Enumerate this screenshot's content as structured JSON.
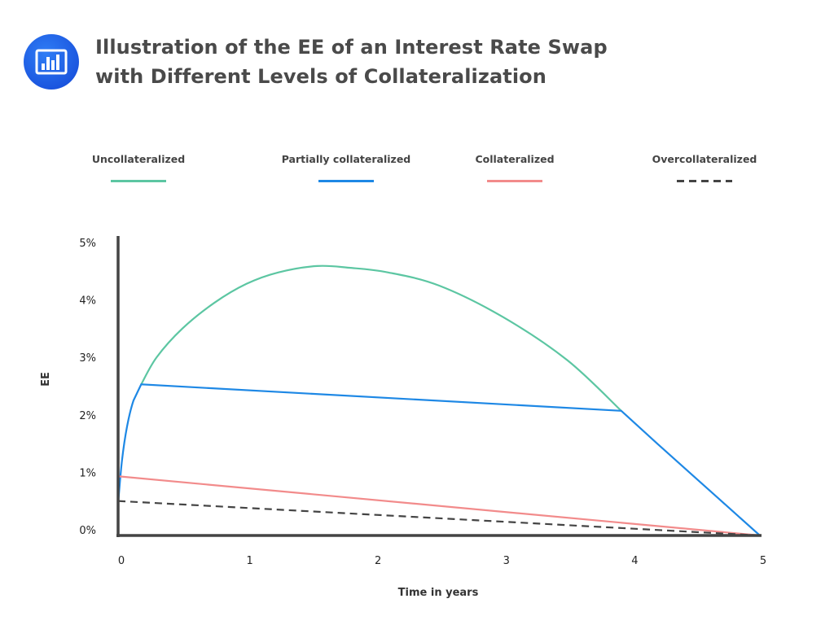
{
  "header": {
    "icon": "bar-chart-icon",
    "title_line1": "Illustration of the EE of an Interest Rate Swap",
    "title_line2": "with Different Levels of Collateralization"
  },
  "chart_data": {
    "type": "line",
    "title": "Illustration of the EE of an Interest Rate Swap with Different Levels of Collateralization",
    "xlabel": "Time in years",
    "ylabel": "EE",
    "xlim": [
      0,
      5
    ],
    "ylim": [
      0,
      5
    ],
    "xticks": [
      "0",
      "1",
      "2",
      "3",
      "4",
      "5"
    ],
    "yticks": [
      "0%",
      "1%",
      "2%",
      "3%",
      "4%",
      "5%"
    ],
    "grid": false,
    "legend_position": "top",
    "series": [
      {
        "name": "Uncollateralized",
        "color": "#5cc6a2",
        "dash": false,
        "x": [
          0.18,
          0.3,
          0.5,
          0.75,
          1.0,
          1.25,
          1.55,
          1.8,
          2.1,
          2.5,
          3.0,
          3.5,
          3.92
        ],
        "y": [
          2.63,
          3.1,
          3.6,
          4.05,
          4.38,
          4.58,
          4.69,
          4.66,
          4.58,
          4.35,
          3.8,
          3.05,
          2.17
        ]
      },
      {
        "name": "Partially collateralized",
        "color": "#1e88e5",
        "dash": false,
        "x": [
          0,
          0.03,
          0.07,
          0.12,
          0.18,
          3.92,
          4.2,
          4.5,
          4.75,
          5.0
        ],
        "y": [
          0.55,
          1.3,
          1.9,
          2.35,
          2.63,
          2.17,
          1.6,
          1.0,
          0.5,
          0
        ]
      },
      {
        "name": "Collateralized",
        "color": "#f28b8b",
        "dash": false,
        "x": [
          0,
          5
        ],
        "y": [
          1.03,
          0
        ]
      },
      {
        "name": "Overcollateralized",
        "color": "#444444",
        "dash": true,
        "x": [
          0,
          5
        ],
        "y": [
          0.6,
          0
        ]
      }
    ]
  }
}
